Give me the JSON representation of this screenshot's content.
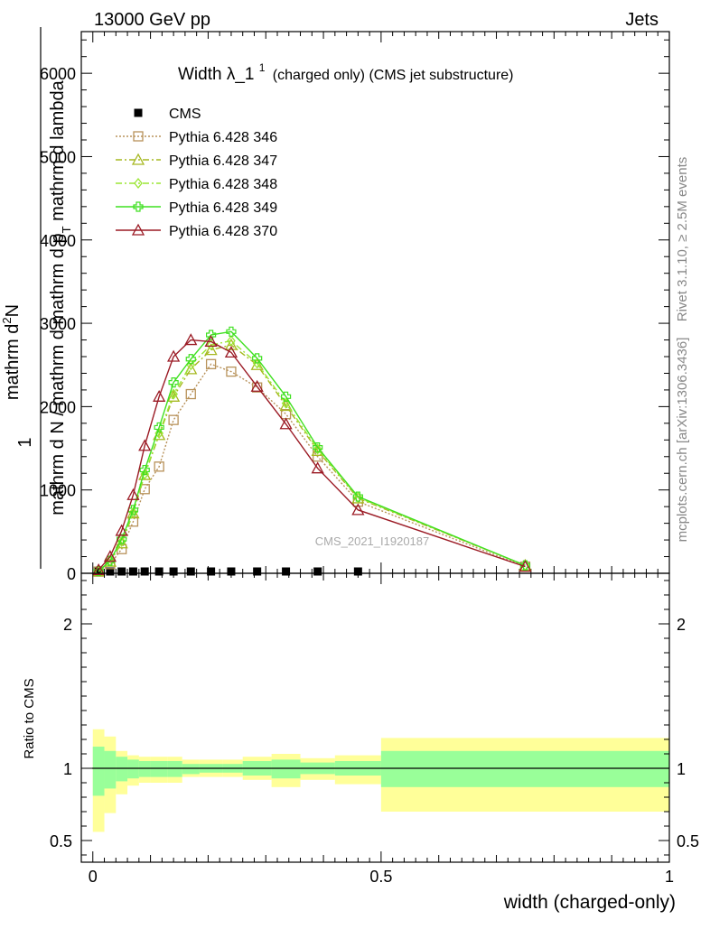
{
  "header": {
    "energy": "13000 GeV pp",
    "process": "Jets"
  },
  "title": {
    "main": "Width λ_1",
    "sup": "1",
    "suffix": "(charged only) (CMS jet substructure)"
  },
  "side_labels": {
    "rivet": "Rivet 3.1.10, ≥ 2.5M events",
    "mcplots": "mcplots.cern.ch [arXiv:1306.3436]"
  },
  "watermark": "CMS_2021_I1920187",
  "ylabel": {
    "one": "1",
    "den": "mathrm d N / mathrm d mathrm d p",
    "den_sub": "T",
    "den_tail": " mathrm d lambda",
    "num": "mathrm d",
    "num_sup": "2",
    "num_tail": "N"
  },
  "ratio_ylabel": "Ratio to CMS",
  "xlabel": "width (charged-only)",
  "chart_data": [
    {
      "type": "line",
      "panel": "main",
      "xlim": [
        -0.02,
        1.0
      ],
      "ylim": [
        0,
        6500
      ],
      "yticks": [
        {
          "v": 0,
          "label": "0"
        },
        {
          "v": 1000,
          "label": "1000"
        },
        {
          "v": 2000,
          "label": "2000"
        },
        {
          "v": 3000,
          "label": "3000"
        },
        {
          "v": 4000,
          "label": "4000"
        },
        {
          "v": 5000,
          "label": "5000"
        },
        {
          "v": 6000,
          "label": "6000"
        }
      ],
      "legend_position": "top-left",
      "series": [
        {
          "name": "CMS",
          "color": "#000000",
          "marker": "filled-square",
          "line": "none",
          "x": [
            0.01,
            0.03,
            0.05,
            0.07,
            0.09,
            0.115,
            0.14,
            0.17,
            0.205,
            0.24,
            0.285,
            0.335,
            0.39,
            0.46
          ],
          "y": [
            0,
            0,
            0,
            0,
            0,
            0,
            0,
            0,
            0,
            0,
            0,
            0,
            0,
            0
          ]
        },
        {
          "name": "Pythia 6.428 346",
          "color": "#b8925a",
          "marker": "open-square",
          "line": "dotted",
          "x": [
            0.01,
            0.03,
            0.05,
            0.07,
            0.09,
            0.115,
            0.14,
            0.17,
            0.205,
            0.24,
            0.285,
            0.335,
            0.39,
            0.46,
            0.75
          ],
          "y": [
            20,
            110,
            290,
            620,
            1010,
            1280,
            1840,
            2150,
            2510,
            2420,
            2230,
            1910,
            1400,
            860,
            80
          ]
        },
        {
          "name": "Pythia 6.428 347",
          "color": "#a6b820",
          "marker": "open-triangle",
          "line": "dash-dot",
          "x": [
            0.01,
            0.03,
            0.05,
            0.07,
            0.09,
            0.115,
            0.14,
            0.17,
            0.205,
            0.24,
            0.285,
            0.335,
            0.39,
            0.46,
            0.75
          ],
          "y": [
            25,
            140,
            360,
            720,
            1180,
            1660,
            2120,
            2450,
            2680,
            2740,
            2500,
            2010,
            1470,
            900,
            95
          ]
        },
        {
          "name": "Pythia 6.428 348",
          "color": "#9be635",
          "marker": "open-diamond",
          "line": "dash-dot",
          "x": [
            0.01,
            0.03,
            0.05,
            0.07,
            0.09,
            0.115,
            0.14,
            0.17,
            0.205,
            0.24,
            0.285,
            0.335,
            0.39,
            0.46,
            0.75
          ],
          "y": [
            25,
            145,
            380,
            730,
            1190,
            1680,
            2150,
            2500,
            2740,
            2790,
            2520,
            2040,
            1490,
            910,
            95
          ]
        },
        {
          "name": "Pythia 6.428 349",
          "color": "#3fe020",
          "marker": "open-cross",
          "line": "solid",
          "x": [
            0.01,
            0.03,
            0.05,
            0.07,
            0.09,
            0.115,
            0.14,
            0.17,
            0.205,
            0.24,
            0.285,
            0.335,
            0.39,
            0.46,
            0.75
          ],
          "y": [
            25,
            150,
            410,
            760,
            1240,
            1750,
            2290,
            2570,
            2860,
            2900,
            2580,
            2120,
            1510,
            920,
            95
          ]
        },
        {
          "name": "Pythia 6.428 370",
          "color": "#9b1a24",
          "marker": "open-triangle",
          "line": "solid",
          "x": [
            0.01,
            0.03,
            0.05,
            0.07,
            0.09,
            0.115,
            0.14,
            0.17,
            0.205,
            0.24,
            0.285,
            0.335,
            0.39,
            0.46,
            0.75
          ],
          "y": [
            40,
            200,
            510,
            940,
            1530,
            2120,
            2600,
            2800,
            2780,
            2650,
            2240,
            1790,
            1260,
            760,
            80
          ]
        }
      ]
    },
    {
      "type": "area",
      "panel": "ratio",
      "xlim": [
        -0.02,
        1.0
      ],
      "ylim": [
        0.35,
        2.35
      ],
      "yticks": [
        {
          "v": 0.5,
          "label": "0.5"
        },
        {
          "v": 1,
          "label": "1"
        },
        {
          "v": 2,
          "label": "2"
        }
      ],
      "xticks": [
        {
          "v": 0,
          "label": "0"
        },
        {
          "v": 0.5,
          "label": "0.5"
        },
        {
          "v": 1,
          "label": "1"
        }
      ],
      "bins": [
        {
          "x0": 0.0,
          "x1": 0.02,
          "stat_lo": 0.81,
          "stat_hi": 1.15,
          "tot_lo": 0.56,
          "tot_hi": 1.27
        },
        {
          "x0": 0.02,
          "x1": 0.04,
          "stat_lo": 0.86,
          "stat_hi": 1.12,
          "tot_lo": 0.69,
          "tot_hi": 1.22
        },
        {
          "x0": 0.04,
          "x1": 0.06,
          "stat_lo": 0.91,
          "stat_hi": 1.08,
          "tot_lo": 0.82,
          "tot_hi": 1.12
        },
        {
          "x0": 0.06,
          "x1": 0.08,
          "stat_lo": 0.93,
          "stat_hi": 1.06,
          "tot_lo": 0.88,
          "tot_hi": 1.09
        },
        {
          "x0": 0.08,
          "x1": 0.1,
          "stat_lo": 0.94,
          "stat_hi": 1.05,
          "tot_lo": 0.9,
          "tot_hi": 1.08
        },
        {
          "x0": 0.1,
          "x1": 0.13,
          "stat_lo": 0.94,
          "stat_hi": 1.05,
          "tot_lo": 0.9,
          "tot_hi": 1.08
        },
        {
          "x0": 0.13,
          "x1": 0.155,
          "stat_lo": 0.94,
          "stat_hi": 1.05,
          "tot_lo": 0.9,
          "tot_hi": 1.08
        },
        {
          "x0": 0.155,
          "x1": 0.185,
          "stat_lo": 0.96,
          "stat_hi": 1.03,
          "tot_lo": 0.94,
          "tot_hi": 1.06
        },
        {
          "x0": 0.185,
          "x1": 0.225,
          "stat_lo": 0.97,
          "stat_hi": 1.03,
          "tot_lo": 0.94,
          "tot_hi": 1.06
        },
        {
          "x0": 0.225,
          "x1": 0.26,
          "stat_lo": 0.97,
          "stat_hi": 1.03,
          "tot_lo": 0.94,
          "tot_hi": 1.06
        },
        {
          "x0": 0.26,
          "x1": 0.31,
          "stat_lo": 0.95,
          "stat_hi": 1.05,
          "tot_lo": 0.92,
          "tot_hi": 1.08
        },
        {
          "x0": 0.31,
          "x1": 0.36,
          "stat_lo": 0.93,
          "stat_hi": 1.06,
          "tot_lo": 0.87,
          "tot_hi": 1.1
        },
        {
          "x0": 0.36,
          "x1": 0.42,
          "stat_lo": 0.96,
          "stat_hi": 1.04,
          "tot_lo": 0.92,
          "tot_hi": 1.07
        },
        {
          "x0": 0.42,
          "x1": 0.5,
          "stat_lo": 0.95,
          "stat_hi": 1.05,
          "tot_lo": 0.89,
          "tot_hi": 1.09
        },
        {
          "x0": 0.5,
          "x1": 1.0,
          "stat_lo": 0.87,
          "stat_hi": 1.12,
          "tot_lo": 0.7,
          "tot_hi": 1.21
        }
      ],
      "band_colors": {
        "stat": "#99ff99",
        "total": "#ffff99"
      },
      "reference_line": 1
    }
  ]
}
